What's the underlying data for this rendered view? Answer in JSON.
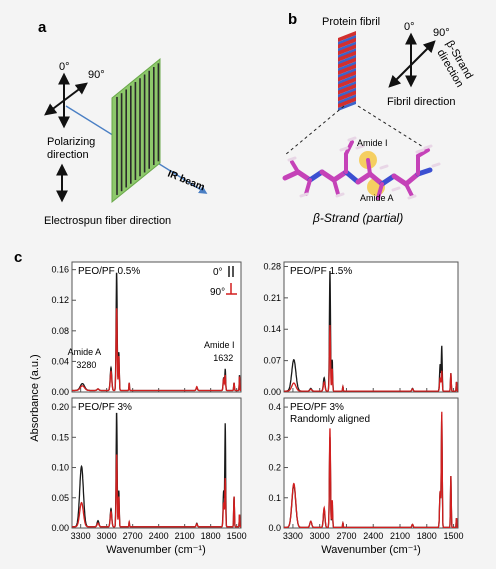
{
  "panel_a": {
    "letter": "a",
    "pol_0": "0°",
    "pol_90": "90°",
    "polarizing_label_1": "Polarizing",
    "polarizing_label_2": "direction",
    "ir_beam_label": "IR beam",
    "fiber_direction_label": "Electrospun fiber direction",
    "colors": {
      "mesh": "#8dc86b",
      "beam": "#4a7fc4"
    }
  },
  "panel_b": {
    "letter": "b",
    "fibril_label": "Protein fibril",
    "strand_0": "0°",
    "strand_90": "90°",
    "strand_dir_1": "β-Strand",
    "strand_dir_2": "direction",
    "fibril_dir_label": "Fibril direction",
    "amide_i": "Amide I",
    "amide_a": "Amide A",
    "caption": "β-Strand (partial)",
    "colors": {
      "helix_red": "#d12f2f",
      "helix_blue": "#3c63c9",
      "carbon": "#c542b8",
      "nitrogen": "#3b4fd1",
      "hydrogen": "#e8d6e6",
      "highlight": "#f5c330"
    }
  },
  "panel_c": {
    "letter": "c",
    "y_axis_label": "Absorbance (a.u.)",
    "x_axis_label": "Wavenumber (cm⁻¹)",
    "legend": {
      "label_0": "0°",
      "label_90": "90°"
    },
    "colors": {
      "series_0": "#1a1a1a",
      "series_90": "#d21f1f"
    }
  },
  "chart_data": [
    {
      "type": "line",
      "title": "PEO/PF 0.5%",
      "xlabel": "Wavenumber (cm⁻¹)",
      "ylabel": "Absorbance (a.u.)",
      "xlim": [
        3400,
        1450
      ],
      "ylim": [
        0,
        0.17
      ],
      "x_ticks": [],
      "y_ticks": [
        0.0,
        0.04,
        0.08,
        0.12,
        0.16
      ],
      "annotations": [
        {
          "text": "Amide A",
          "x": 3280
        },
        {
          "text": "3280",
          "x": 3280
        },
        {
          "text": "Amide I",
          "x": 1632
        },
        {
          "text": "1632",
          "x": 1632
        }
      ],
      "legend": "top-right",
      "series": [
        {
          "name": "0°",
          "color": "#1a1a1a",
          "baseline": 0.002,
          "peaks": [
            [
              3280,
              0.009,
              70
            ],
            [
              3100,
              0.002,
              30
            ],
            [
              2950,
              0.03,
              25
            ],
            [
              2885,
              0.155,
              18
            ],
            [
              2860,
              0.05,
              15
            ],
            [
              2740,
              0.01,
              10
            ],
            [
              1960,
              0.004,
              20
            ],
            [
              1650,
              0.017,
              18
            ],
            [
              1632,
              0.028,
              14
            ],
            [
              1530,
              0.01,
              12
            ],
            [
              1467,
              0.02,
              10
            ]
          ]
        },
        {
          "name": "90°",
          "color": "#d21f1f",
          "baseline": 0.002,
          "peaks": [
            [
              3280,
              0.006,
              70
            ],
            [
              3100,
              0.002,
              30
            ],
            [
              2950,
              0.025,
              25
            ],
            [
              2885,
              0.108,
              18
            ],
            [
              2860,
              0.045,
              15
            ],
            [
              2740,
              0.01,
              10
            ],
            [
              1960,
              0.005,
              20
            ],
            [
              1650,
              0.015,
              18
            ],
            [
              1632,
              0.02,
              14
            ],
            [
              1530,
              0.01,
              12
            ],
            [
              1467,
              0.018,
              10
            ]
          ]
        }
      ]
    },
    {
      "type": "line",
      "title": "PEO/PF 1.5%",
      "xlabel": "Wavenumber (cm⁻¹)",
      "ylabel": "Absorbance (a.u.)",
      "xlim": [
        3400,
        1450
      ],
      "ylim": [
        0,
        0.29
      ],
      "x_ticks": [],
      "y_ticks": [
        0.0,
        0.07,
        0.14,
        0.21,
        0.28
      ],
      "legend": "none",
      "series": [
        {
          "name": "0°",
          "color": "#1a1a1a",
          "baseline": 0.002,
          "peaks": [
            [
              3290,
              0.07,
              65
            ],
            [
              3100,
              0.006,
              30
            ],
            [
              2950,
              0.03,
              25
            ],
            [
              2885,
              0.27,
              17
            ],
            [
              2860,
              0.07,
              14
            ],
            [
              2740,
              0.01,
              10
            ],
            [
              1960,
              0.006,
              20
            ],
            [
              1650,
              0.06,
              18
            ],
            [
              1632,
              0.1,
              14
            ],
            [
              1530,
              0.04,
              12
            ],
            [
              1467,
              0.02,
              10
            ]
          ]
        },
        {
          "name": "90°",
          "color": "#d21f1f",
          "baseline": 0.002,
          "peaks": [
            [
              3290,
              0.018,
              65
            ],
            [
              3100,
              0.004,
              30
            ],
            [
              2950,
              0.02,
              25
            ],
            [
              2885,
              0.148,
              17
            ],
            [
              2860,
              0.05,
              14
            ],
            [
              2740,
              0.01,
              10
            ],
            [
              1960,
              0.005,
              20
            ],
            [
              1650,
              0.03,
              18
            ],
            [
              1632,
              0.045,
              14
            ],
            [
              1530,
              0.04,
              12
            ],
            [
              1467,
              0.02,
              10
            ]
          ]
        }
      ]
    },
    {
      "type": "line",
      "title": "PEO/PF 3%",
      "xlabel": "Wavenumber (cm⁻¹)",
      "ylabel": "Absorbance (a.u.)",
      "xlim": [
        3400,
        1450
      ],
      "ylim": [
        0,
        0.215
      ],
      "x_ticks": [
        3300,
        3000,
        2700,
        2400,
        2100,
        1800,
        1500
      ],
      "y_ticks": [
        0.0,
        0.05,
        0.1,
        0.15,
        0.2
      ],
      "legend": "none",
      "series": [
        {
          "name": "0°",
          "color": "#1a1a1a",
          "baseline": 0.002,
          "peaks": [
            [
              3290,
              0.1,
              60
            ],
            [
              3100,
              0.01,
              30
            ],
            [
              2950,
              0.03,
              25
            ],
            [
              2885,
              0.19,
              17
            ],
            [
              2860,
              0.06,
              14
            ],
            [
              2740,
              0.008,
              10
            ],
            [
              1960,
              0.006,
              20
            ],
            [
              1650,
              0.06,
              18
            ],
            [
              1632,
              0.17,
              14
            ],
            [
              1530,
              0.05,
              12
            ],
            [
              1467,
              0.02,
              10
            ]
          ]
        },
        {
          "name": "90°",
          "color": "#d21f1f",
          "baseline": 0.002,
          "peaks": [
            [
              3290,
              0.04,
              60
            ],
            [
              3100,
              0.006,
              30
            ],
            [
              2950,
              0.025,
              25
            ],
            [
              2885,
              0.12,
              17
            ],
            [
              2860,
              0.05,
              14
            ],
            [
              2740,
              0.008,
              10
            ],
            [
              1960,
              0.005,
              20
            ],
            [
              1650,
              0.04,
              18
            ],
            [
              1632,
              0.08,
              14
            ],
            [
              1530,
              0.05,
              12
            ],
            [
              1467,
              0.02,
              10
            ]
          ]
        }
      ]
    },
    {
      "type": "line",
      "title": "PEO/PF 3%",
      "subtitle": "Randomly aligned",
      "xlabel": "Wavenumber (cm⁻¹)",
      "ylabel": "Absorbance (a.u.)",
      "xlim": [
        3400,
        1450
      ],
      "ylim": [
        0,
        0.43
      ],
      "x_ticks": [
        3300,
        3000,
        2700,
        2400,
        2100,
        1800,
        1500
      ],
      "y_ticks": [
        0.0,
        0.1,
        0.2,
        0.3,
        0.4
      ],
      "legend": "none",
      "series": [
        {
          "name": "0°",
          "color": "#1a1a1a",
          "baseline": 0.002,
          "peaks": [
            [
              3290,
              0.14,
              60
            ],
            [
              3100,
              0.02,
              30
            ],
            [
              2950,
              0.06,
              25
            ],
            [
              2885,
              0.3,
              17
            ],
            [
              2860,
              0.08,
              14
            ],
            [
              2740,
              0.015,
              10
            ],
            [
              1960,
              0.01,
              20
            ],
            [
              1650,
              0.12,
              18
            ],
            [
              1632,
              0.37,
              14
            ],
            [
              1530,
              0.17,
              12
            ],
            [
              1467,
              0.03,
              10
            ]
          ]
        },
        {
          "name": "90°",
          "color": "#d21f1f",
          "baseline": 0.002,
          "peaks": [
            [
              3290,
              0.145,
              60
            ],
            [
              3100,
              0.02,
              30
            ],
            [
              2950,
              0.065,
              25
            ],
            [
              2885,
              0.33,
              17
            ],
            [
              2860,
              0.09,
              14
            ],
            [
              2740,
              0.015,
              10
            ],
            [
              1960,
              0.01,
              20
            ],
            [
              1650,
              0.12,
              18
            ],
            [
              1632,
              0.38,
              14
            ],
            [
              1530,
              0.17,
              12
            ],
            [
              1467,
              0.03,
              10
            ]
          ]
        }
      ]
    }
  ]
}
